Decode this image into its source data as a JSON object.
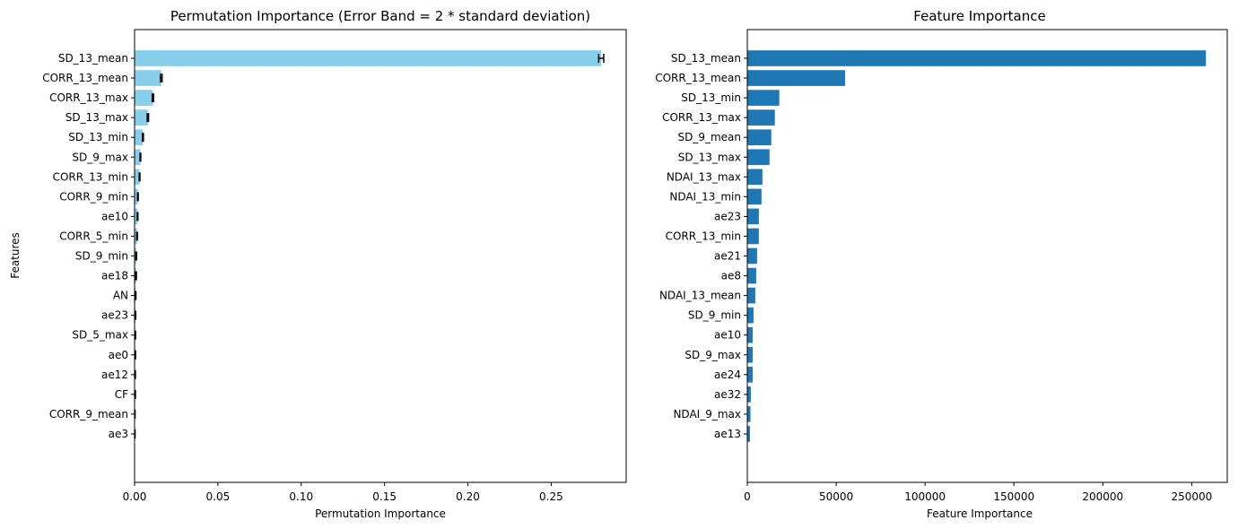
{
  "chart_data": [
    {
      "type": "bar",
      "orientation": "horizontal",
      "title": "Permutation Importance (Error Band = 2 * standard deviation)",
      "xlabel": "Permutation Importance",
      "ylabel": "Features",
      "xlim": [
        0,
        0.295
      ],
      "xticks": [
        0.0,
        0.05,
        0.1,
        0.15,
        0.2,
        0.25
      ],
      "xtick_labels": [
        "0.00",
        "0.05",
        "0.10",
        "0.15",
        "0.20",
        "0.25"
      ],
      "bar_color": "#87ceeb",
      "error_color": "#000000",
      "grid": false,
      "categories": [
        "SD_13_mean",
        "CORR_13_mean",
        "CORR_13_max",
        "SD_13_max",
        "SD_13_min",
        "SD_9_max",
        "CORR_13_min",
        "CORR_9_min",
        "ae10",
        "CORR_5_min",
        "SD_9_min",
        "ae18",
        "AN",
        "ae23",
        "SD_5_max",
        "ae0",
        "ae12",
        "CF",
        "CORR_9_mean",
        "ae3"
      ],
      "values": [
        0.28,
        0.016,
        0.011,
        0.008,
        0.005,
        0.0035,
        0.003,
        0.002,
        0.0018,
        0.0015,
        0.001,
        0.0009,
        0.0006,
        0.0005,
        0.0004,
        0.0004,
        0.0003,
        0.0003,
        0.0002,
        0.0002
      ],
      "errors": [
        0.0015,
        0.0005,
        0.0004,
        0.0004,
        0.0003,
        0.0002,
        0.0002,
        0.0002,
        0.0002,
        0.0002,
        0.0002,
        0.0002,
        0.0002,
        0.0002,
        0.0002,
        0.0002,
        0.0002,
        0.0002,
        0.0001,
        0.0001
      ]
    },
    {
      "type": "bar",
      "orientation": "horizontal",
      "title": "Feature Importance",
      "xlabel": "Feature Importance",
      "ylabel": "",
      "xlim": [
        0,
        270000
      ],
      "xticks": [
        0,
        50000,
        100000,
        150000,
        200000,
        250000
      ],
      "xtick_labels": [
        "0",
        "50000",
        "100000",
        "150000",
        "200000",
        "250000"
      ],
      "bar_color": "#1f77b4",
      "grid": false,
      "categories": [
        "SD_13_mean",
        "CORR_13_mean",
        "SD_13_min",
        "CORR_13_max",
        "SD_9_mean",
        "SD_13_max",
        "NDAI_13_max",
        "NDAI_13_min",
        "ae23",
        "CORR_13_min",
        "ae21",
        "ae8",
        "NDAI_13_mean",
        "SD_9_min",
        "ae10",
        "SD_9_max",
        "ae24",
        "ae32",
        "NDAI_9_max",
        "ae13"
      ],
      "values": [
        258000,
        55000,
        18000,
        15500,
        13500,
        12500,
        8500,
        8000,
        6500,
        6500,
        5500,
        5000,
        4500,
        3500,
        3000,
        3000,
        3000,
        2000,
        1800,
        1500
      ]
    }
  ]
}
